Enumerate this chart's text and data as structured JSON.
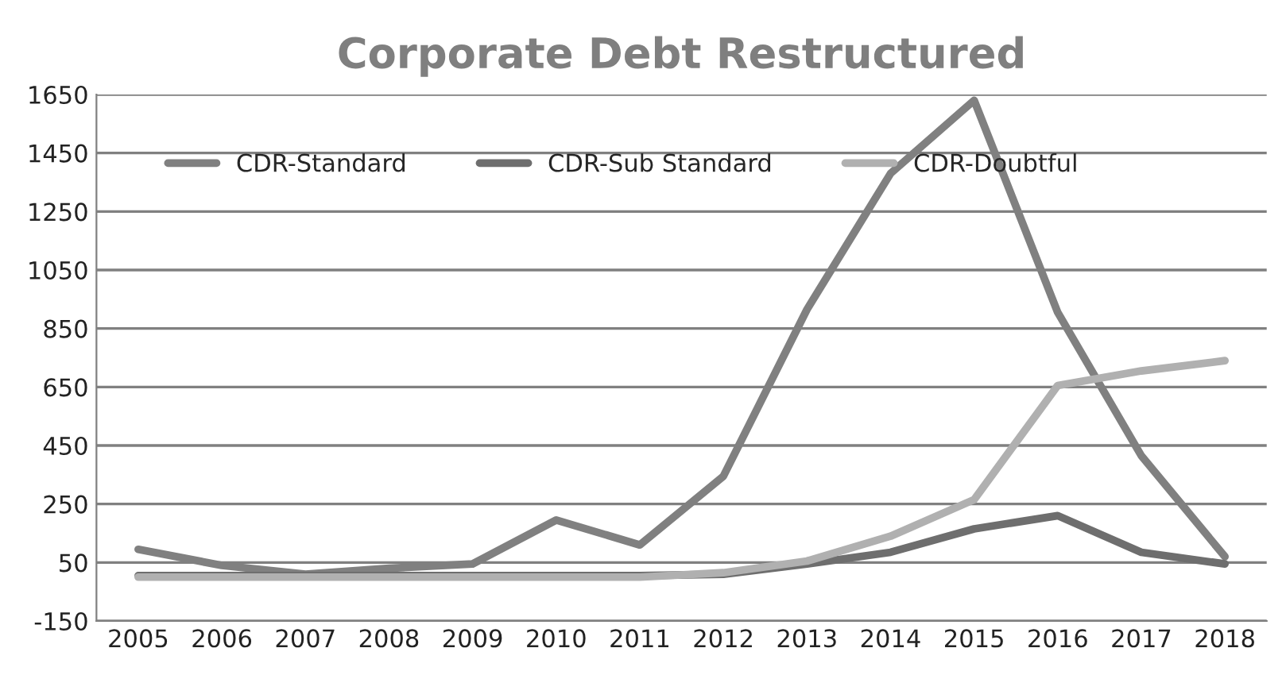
{
  "chart_data": {
    "type": "line",
    "title": "Corporate Debt Restructured",
    "categories": [
      "2005",
      "2006",
      "2007",
      "2008",
      "2009",
      "2010",
      "2011",
      "2012",
      "2013",
      "2014",
      "2015",
      "2016",
      "2017",
      "2018"
    ],
    "series": [
      {
        "name": "CDR-Standard",
        "color": "#808080",
        "values": [
          95,
          40,
          10,
          30,
          45,
          195,
          110,
          345,
          915,
          1380,
          1630,
          905,
          415,
          70
        ]
      },
      {
        "name": "CDR-Sub Standard",
        "color": "#6e6e6e",
        "values": [
          5,
          5,
          5,
          5,
          5,
          5,
          5,
          10,
          45,
          85,
          165,
          210,
          85,
          45
        ]
      },
      {
        "name": "CDR-Doubtful",
        "color": "#b0b0b0",
        "values": [
          0,
          0,
          0,
          0,
          0,
          0,
          0,
          15,
          55,
          140,
          265,
          655,
          705,
          740
        ]
      }
    ],
    "ylim": [
      -150,
      1650
    ],
    "yticks": [
      -150,
      50,
      250,
      450,
      650,
      850,
      1050,
      1250,
      1450,
      1650
    ],
    "grid": "y",
    "legend": "top",
    "marker": "none",
    "line_style": "solid"
  }
}
